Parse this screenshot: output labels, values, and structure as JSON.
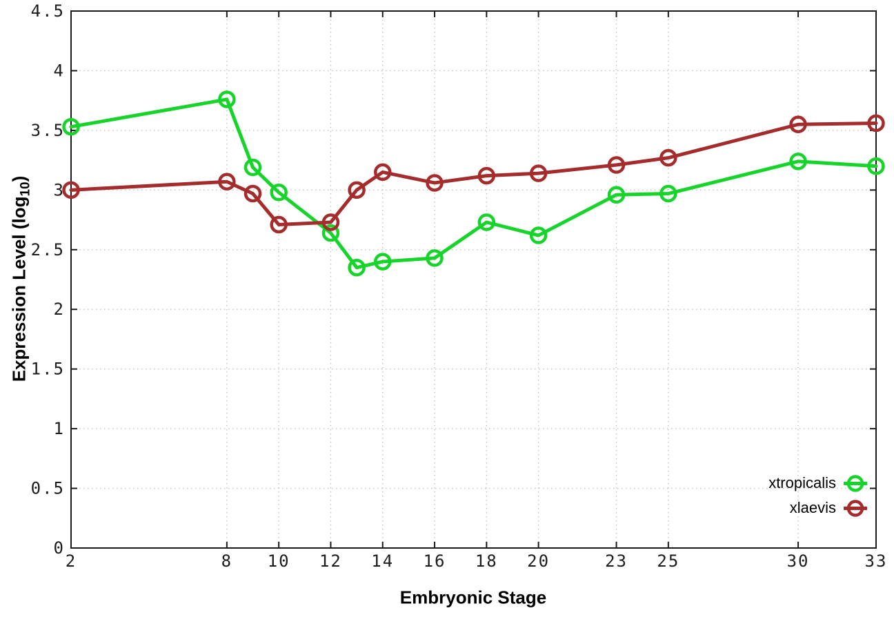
{
  "chart_data": {
    "type": "line",
    "x": [
      2,
      8,
      9,
      10,
      12,
      13,
      14,
      16,
      18,
      20,
      23,
      25,
      30,
      33
    ],
    "series": [
      {
        "name": "xtropicalis",
        "color": "#17d42a",
        "marker": "open-circle",
        "values": [
          3.53,
          3.76,
          3.19,
          2.98,
          2.64,
          2.35,
          2.4,
          2.43,
          2.73,
          2.62,
          2.96,
          2.97,
          3.24,
          3.2
        ]
      },
      {
        "name": "xlaevis",
        "color": "#a52c2c",
        "marker": "open-circle",
        "values": [
          3.0,
          3.07,
          2.97,
          2.71,
          2.73,
          3.0,
          3.15,
          3.06,
          3.12,
          3.14,
          3.21,
          3.27,
          3.55,
          3.56
        ]
      }
    ],
    "title": "",
    "xlabel": "Embryonic Stage",
    "ylabel": "Expression Level (log10)",
    "ylabel_parts": {
      "pre": "Expression Level (log",
      "sub": "10",
      "post": ")"
    },
    "xticks": [
      2,
      8,
      10,
      12,
      14,
      16,
      18,
      20,
      23,
      25,
      30,
      33
    ],
    "yticks": [
      0,
      0.5,
      1,
      1.5,
      2,
      2.5,
      3,
      3.5,
      4,
      4.5
    ],
    "xlim": [
      2,
      33
    ],
    "ylim": [
      0,
      4.5
    ],
    "grid": true,
    "grid_style": "dotted",
    "legend_position": "bottom-right",
    "axis_color": "#1a1a1a",
    "grid_color": "#c2c2c2",
    "tick_label_color": "#1c1c1c"
  }
}
